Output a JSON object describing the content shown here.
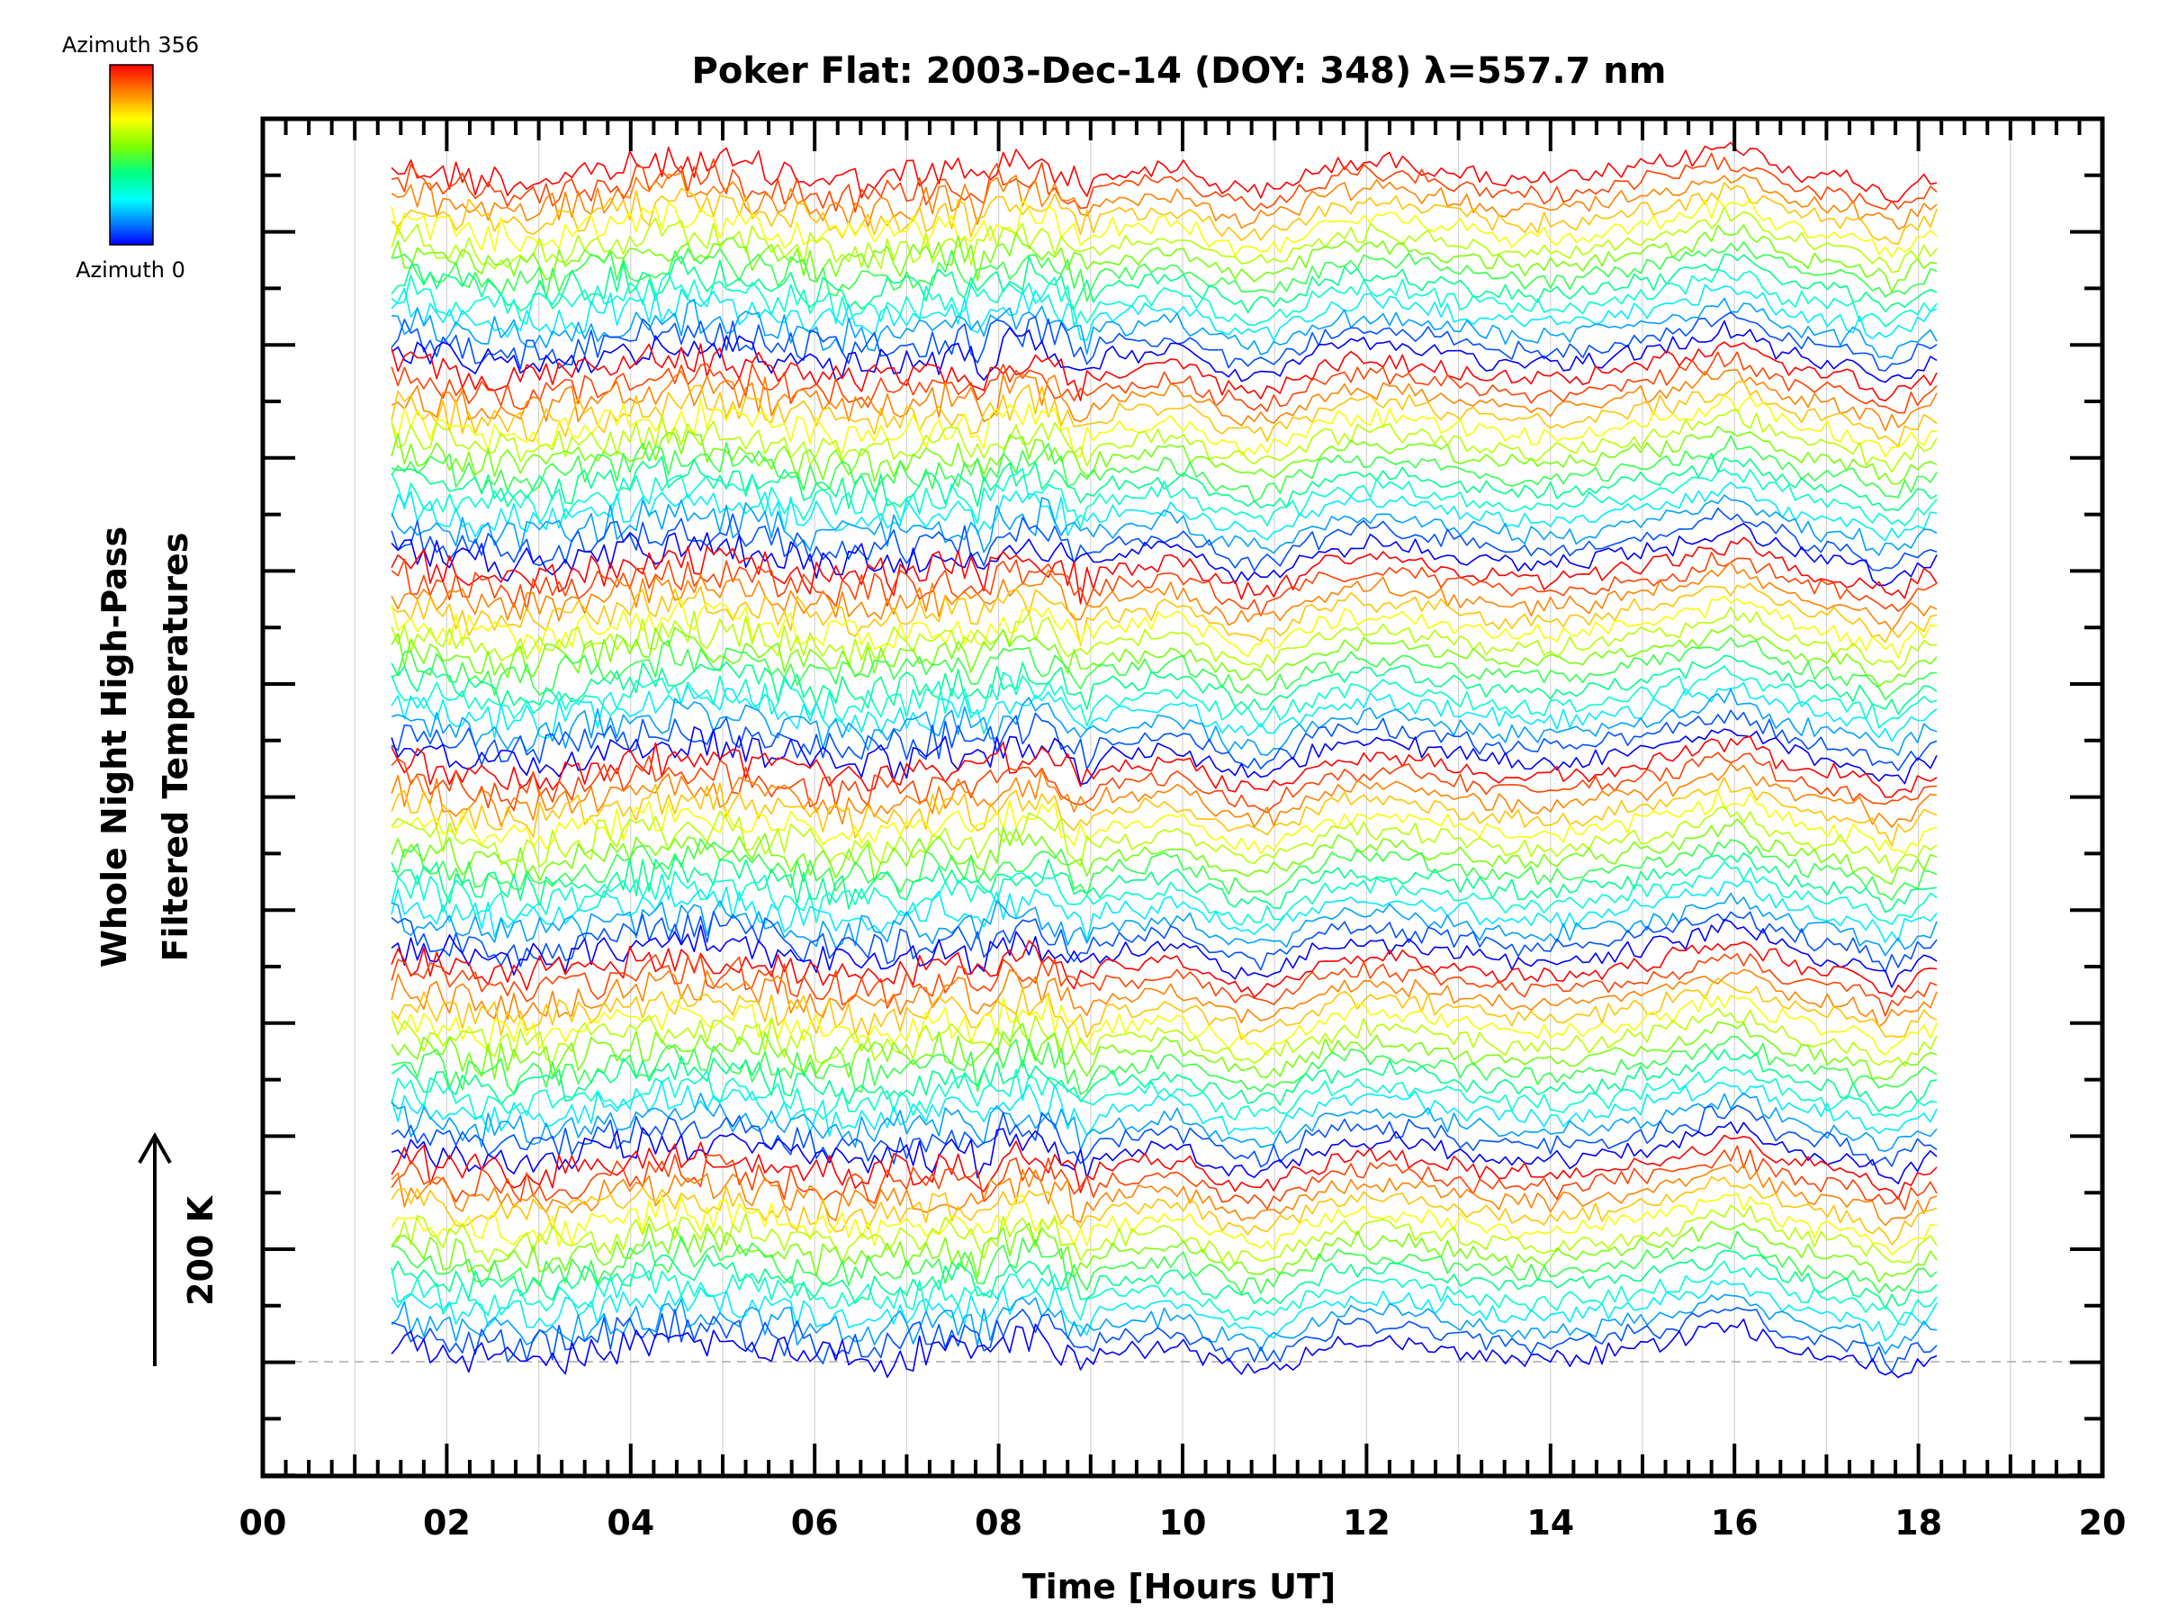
{
  "chart_data": {
    "type": "line",
    "title": "Poker Flat: 2003-Dec-14 (DOY: 348) λ=557.7 nm",
    "xlabel": "Time [Hours UT]",
    "ylabel_line1": "Whole Night High-Pass",
    "ylabel_line2": "Filtered Temperatures",
    "scale_label": "200 K",
    "colorbar": {
      "top_label": "Azimuth 356",
      "bottom_label": "Azimuth 0",
      "colors": [
        "#ff0000",
        "#ff8000",
        "#ffff00",
        "#80ff00",
        "#00ff80",
        "#00ffff",
        "#0080ff",
        "#0000ff"
      ]
    },
    "x_ticks": [
      "00",
      "02",
      "04",
      "06",
      "08",
      "10",
      "12",
      "14",
      "16",
      "18",
      "20"
    ],
    "xlim": [
      0,
      20
    ],
    "x_start": 1.4,
    "x_end": 18.25,
    "grid": true,
    "series_description_groups": 6,
    "series_per_group": 14
  }
}
